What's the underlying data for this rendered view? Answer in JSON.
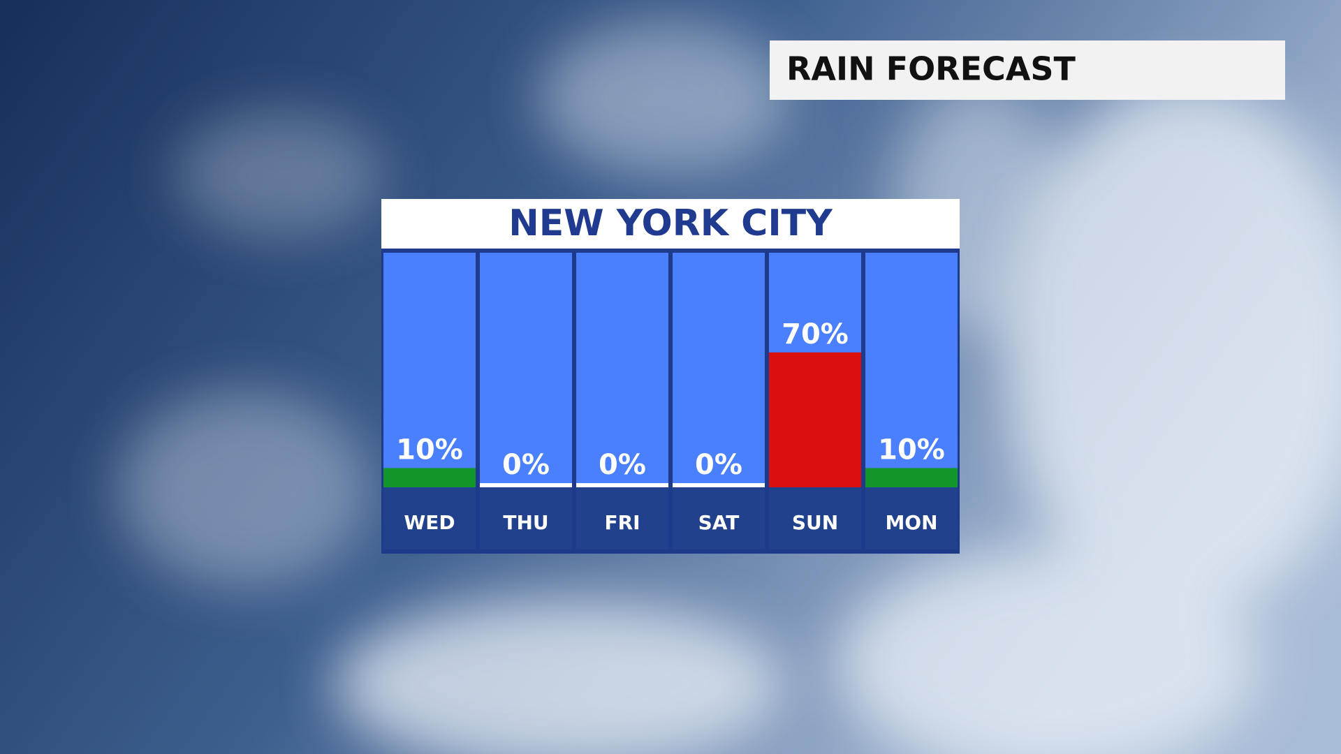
{
  "header": {
    "title": "RAIN FORECAST"
  },
  "chart_data": {
    "type": "bar",
    "title": "NEW YORK CITY",
    "categories": [
      "WED",
      "THU",
      "FRI",
      "SAT",
      "SUN",
      "MON"
    ],
    "values": [
      10,
      0,
      0,
      0,
      70,
      10
    ],
    "value_labels": [
      "10%",
      "0%",
      "0%",
      "0%",
      "70%",
      "10%"
    ],
    "colors": [
      "#12952a",
      "#ffffff",
      "#ffffff",
      "#ffffff",
      "#dc0f0f",
      "#12952a"
    ],
    "ylim": [
      0,
      100
    ]
  }
}
